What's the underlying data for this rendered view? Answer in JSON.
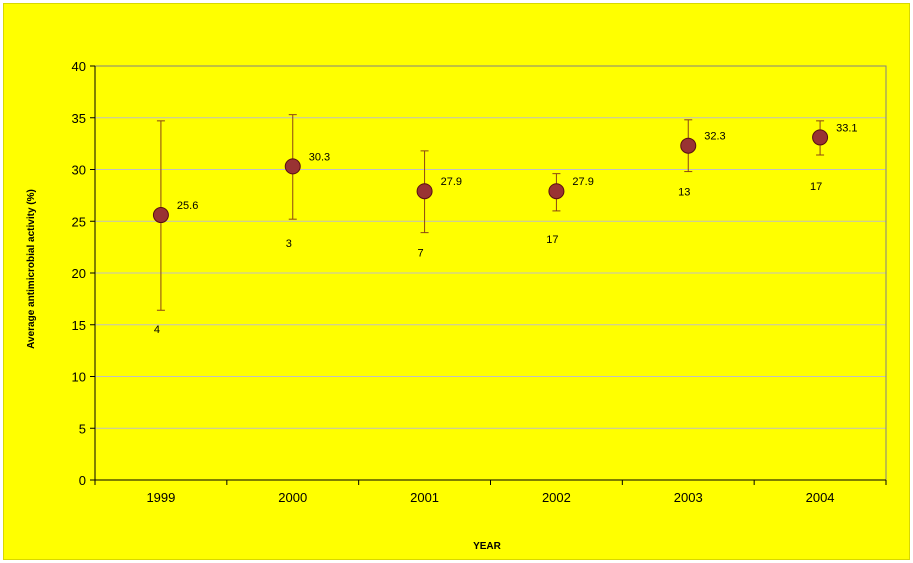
{
  "chart_data": {
    "type": "scatter",
    "xlabel": "YEAR",
    "ylabel": "Average antimicrobial activity (%)",
    "ylim": [
      0,
      40
    ],
    "ytick_step": 5,
    "grid": true,
    "categories": [
      "1999",
      "2000",
      "2001",
      "2002",
      "2003",
      "2004"
    ],
    "values": [
      25.6,
      30.3,
      27.9,
      27.9,
      32.3,
      33.1
    ],
    "value_labels": [
      "25.6",
      "30.3",
      "27.9",
      "27.9",
      "32.3",
      "33.1"
    ],
    "error_low": [
      16.4,
      25.2,
      23.9,
      26.0,
      29.8,
      31.4
    ],
    "error_high": [
      34.7,
      35.3,
      31.8,
      29.6,
      34.8,
      34.7
    ],
    "counts": [
      "4",
      "3",
      "7",
      "17",
      "13",
      "17"
    ],
    "count_positions": [
      14.2,
      22.5,
      21.6,
      22.9,
      27.5,
      28.0
    ],
    "colors": {
      "background": "#ffff00",
      "marker_fill": "#993333",
      "marker_stroke": "#5a1010",
      "error_bar": "#8b4513",
      "grid": "#c0c0c0",
      "axis": "#000000"
    }
  }
}
